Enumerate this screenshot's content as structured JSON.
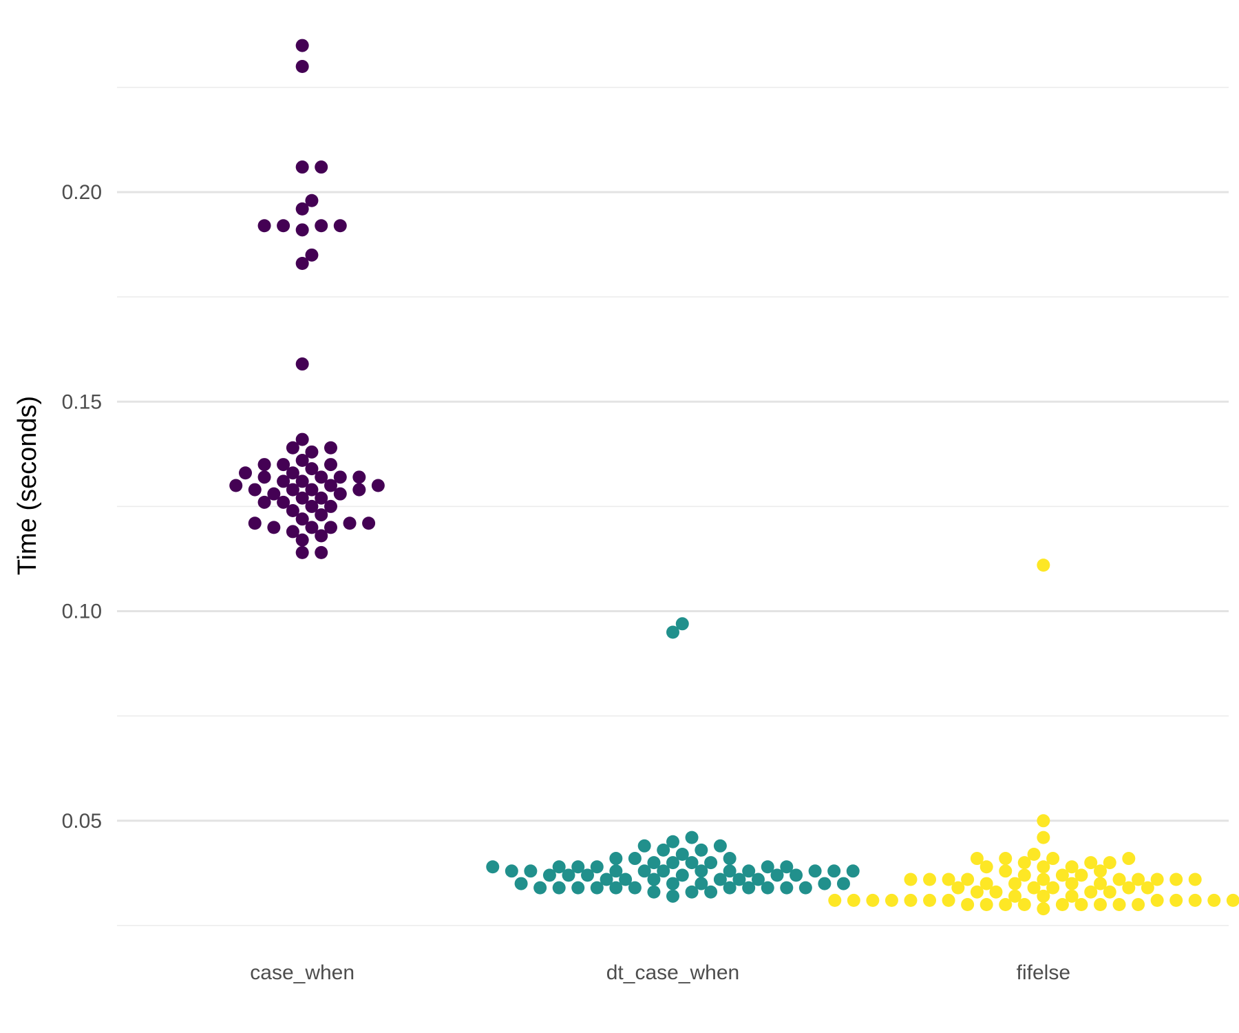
{
  "chart_data": {
    "type": "scatter",
    "subtype": "beeswarm",
    "title": "",
    "xlabel": "",
    "ylabel": "Time (seconds)",
    "ylim": [
      0.024,
      0.236
    ],
    "y_ticks": [
      0.05,
      0.1,
      0.15,
      0.2
    ],
    "y_tick_labels": [
      "0.05",
      "0.10",
      "0.15",
      "0.20"
    ],
    "y_minor_ticks": [
      0.025,
      0.075,
      0.125,
      0.175,
      0.225
    ],
    "categories": [
      "case_when",
      "dt_case_when",
      "fifelse"
    ],
    "grid": true,
    "legend": "none",
    "series": [
      {
        "category": "case_when",
        "color": "#440154",
        "values": [
          0.235,
          0.23,
          0.206,
          0.206,
          0.198,
          0.196,
          0.192,
          0.192,
          0.192,
          0.192,
          0.191,
          0.185,
          0.183,
          0.159,
          0.141,
          0.139,
          0.139,
          0.138,
          0.136,
          0.135,
          0.135,
          0.135,
          0.134,
          0.133,
          0.133,
          0.132,
          0.132,
          0.132,
          0.132,
          0.131,
          0.131,
          0.13,
          0.13,
          0.13,
          0.129,
          0.129,
          0.129,
          0.129,
          0.128,
          0.128,
          0.127,
          0.127,
          0.126,
          0.126,
          0.125,
          0.125,
          0.124,
          0.123,
          0.122,
          0.121,
          0.121,
          0.121,
          0.12,
          0.12,
          0.12,
          0.119,
          0.118,
          0.117,
          0.114,
          0.114
        ]
      },
      {
        "category": "dt_case_when",
        "color": "#21908C",
        "values": [
          0.097,
          0.095,
          0.046,
          0.045,
          0.044,
          0.044,
          0.043,
          0.043,
          0.042,
          0.041,
          0.041,
          0.041,
          0.04,
          0.04,
          0.04,
          0.04,
          0.039,
          0.039,
          0.039,
          0.039,
          0.039,
          0.039,
          0.038,
          0.038,
          0.038,
          0.038,
          0.038,
          0.038,
          0.038,
          0.038,
          0.038,
          0.038,
          0.038,
          0.037,
          0.037,
          0.037,
          0.037,
          0.037,
          0.037,
          0.036,
          0.036,
          0.036,
          0.036,
          0.036,
          0.036,
          0.035,
          0.035,
          0.035,
          0.035,
          0.035,
          0.034,
          0.034,
          0.034,
          0.034,
          0.034,
          0.034,
          0.034,
          0.034,
          0.034,
          0.034,
          0.034,
          0.033,
          0.033,
          0.033,
          0.032
        ]
      },
      {
        "category": "fifelse",
        "color": "#FDE725",
        "values": [
          0.111,
          0.05,
          0.046,
          0.042,
          0.041,
          0.041,
          0.041,
          0.041,
          0.04,
          0.04,
          0.04,
          0.039,
          0.039,
          0.039,
          0.038,
          0.038,
          0.037,
          0.037,
          0.037,
          0.036,
          0.036,
          0.036,
          0.036,
          0.036,
          0.036,
          0.036,
          0.036,
          0.036,
          0.036,
          0.035,
          0.035,
          0.035,
          0.035,
          0.034,
          0.034,
          0.034,
          0.034,
          0.034,
          0.033,
          0.033,
          0.033,
          0.033,
          0.032,
          0.032,
          0.032,
          0.031,
          0.031,
          0.031,
          0.031,
          0.031,
          0.031,
          0.031,
          0.031,
          0.031,
          0.031,
          0.031,
          0.031,
          0.031,
          0.031,
          0.03,
          0.03,
          0.03,
          0.03,
          0.03,
          0.03,
          0.03,
          0.03,
          0.03,
          0.029
        ]
      }
    ]
  }
}
